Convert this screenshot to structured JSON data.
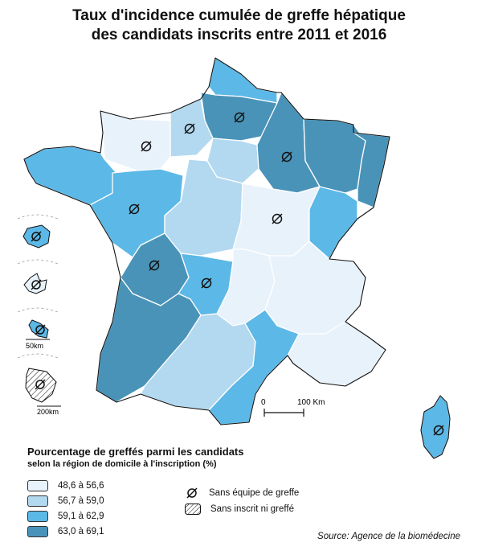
{
  "title_line1": "Taux d'incidence cumulée de greffe hépatique",
  "title_line2": "des candidats inscrits entre 2011 et 2016",
  "legend": {
    "title": "Pourcentage de greffés parmi les candidats",
    "subtitle": "selon la région de domicile à l'inscription (%)",
    "classes": [
      {
        "id": "c1",
        "label": "48,6 à 56,6",
        "color": "#e8f2fb"
      },
      {
        "id": "c2",
        "label": "56,7 à 59,0",
        "color": "#b3d9f0"
      },
      {
        "id": "c3",
        "label": "59,1 à 62,9",
        "color": "#5cb8e6"
      },
      {
        "id": "c4",
        "label": "63,0 à 69,1",
        "color": "#4a93b8"
      }
    ],
    "symbol_no_team": "Sans équipe de greffe",
    "symbol_no_candidate": "Sans inscrit ni greffé"
  },
  "scale": {
    "zero": "0",
    "distance": "100 Km"
  },
  "insets": {
    "scale_small": "50km",
    "scale_large": "200km"
  },
  "source": "Source: Agence de la biomédecine"
}
